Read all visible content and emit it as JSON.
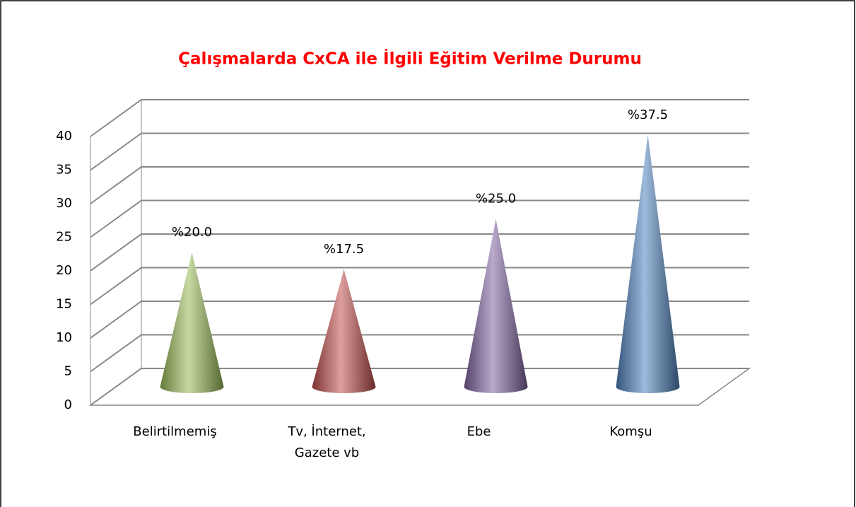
{
  "chart_data": {
    "type": "cone",
    "title": "Çalışmalarda CxCA ile İlgili Eğitim Verilme Durumu",
    "categories": [
      "Belirtilmemiş",
      "Tv, İnternet, Gazete vb",
      "Ebe",
      "Komşu"
    ],
    "values": [
      20,
      17.5,
      25,
      37.5
    ],
    "value_labels": [
      "%20.0",
      "%17.5",
      "%25.0",
      "%37.5"
    ],
    "colors": [
      "#9bbb59",
      "#c0504d",
      "#8064a2",
      "#4f81bd"
    ],
    "ylim": [
      0,
      40
    ],
    "yticks": [
      0,
      5,
      10,
      15,
      20,
      25,
      30,
      35,
      40
    ],
    "grid": true
  }
}
